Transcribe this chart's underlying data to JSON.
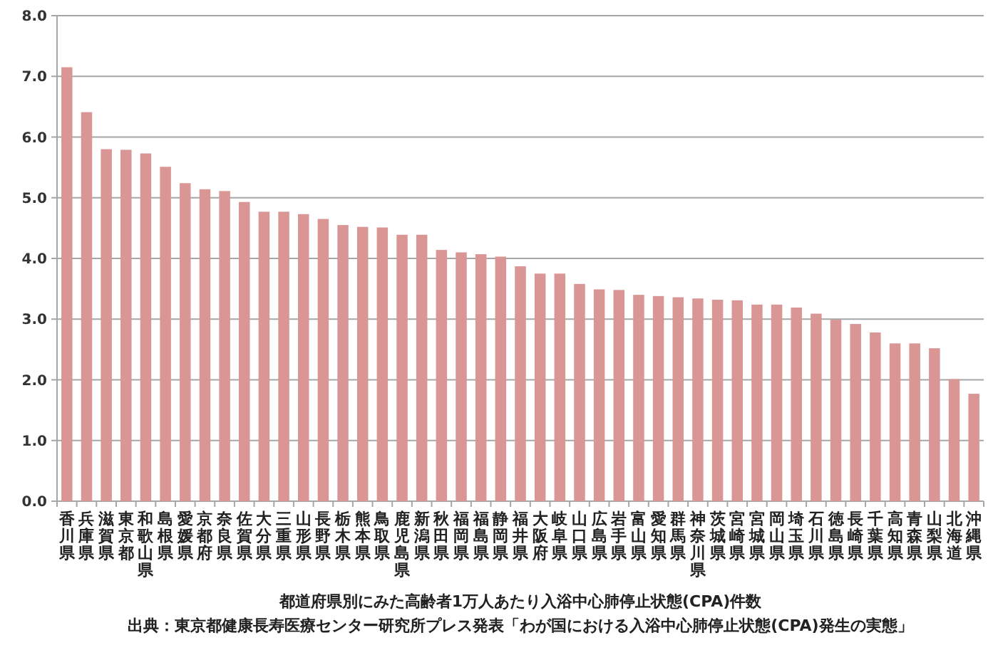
{
  "chart_data": {
    "type": "bar",
    "annotations": [
      "都道府県別にみた高齢者1万人あたり入浴中心肺停止状態(CPA)件数",
      "出典：東京都健康長寿医療センター研究所プレス発表「わが国における入浴中心肺停止状態(CPA)発生の実態」"
    ],
    "categories": [
      "香川県",
      "兵庫県",
      "滋賀県",
      "東京都",
      "和歌山県",
      "島根県",
      "愛媛県",
      "京都府",
      "奈良県",
      "佐賀県",
      "大分県",
      "三重県",
      "山形県",
      "長野県",
      "栃木県",
      "熊本県",
      "鳥取県",
      "鹿児島県",
      "新潟県",
      "秋田県",
      "福岡県",
      "福島県",
      "静岡県",
      "福井県",
      "大阪府",
      "岐阜県",
      "山口県",
      "広島県",
      "岩手県",
      "富山県",
      "愛知県",
      "群馬県",
      "神奈川県",
      "茨城県",
      "宮崎県",
      "宮城県",
      "岡山県",
      "埼玉県",
      "石川県",
      "徳島県",
      "長崎県",
      "千葉県",
      "高知県",
      "青森県",
      "山梨県",
      "北海道",
      "沖縄県"
    ],
    "values": [
      7.15,
      6.41,
      5.8,
      5.79,
      5.73,
      5.51,
      5.24,
      5.14,
      5.11,
      4.93,
      4.77,
      4.77,
      4.73,
      4.65,
      4.55,
      4.52,
      4.51,
      4.39,
      4.39,
      4.14,
      4.1,
      4.07,
      4.03,
      3.87,
      3.75,
      3.75,
      3.58,
      3.49,
      3.48,
      3.4,
      3.38,
      3.36,
      3.34,
      3.32,
      3.31,
      3.24,
      3.24,
      3.19,
      3.09,
      2.99,
      2.92,
      2.78,
      2.6,
      2.6,
      2.52,
      2.01,
      1.77
    ],
    "color": "#d99694",
    "ylim": [
      0,
      8
    ],
    "yticks": [
      {
        "value": 0,
        "label": "0.0"
      },
      {
        "value": 1,
        "label": "1.0"
      },
      {
        "value": 2,
        "label": "2.0"
      },
      {
        "value": 3,
        "label": "3.0"
      },
      {
        "value": 4,
        "label": "4.0"
      },
      {
        "value": 5,
        "label": "5.0"
      },
      {
        "value": 6,
        "label": "6.0"
      },
      {
        "value": 7,
        "label": "7.0"
      },
      {
        "value": 8,
        "label": "8.0"
      }
    ],
    "grid": "y"
  }
}
